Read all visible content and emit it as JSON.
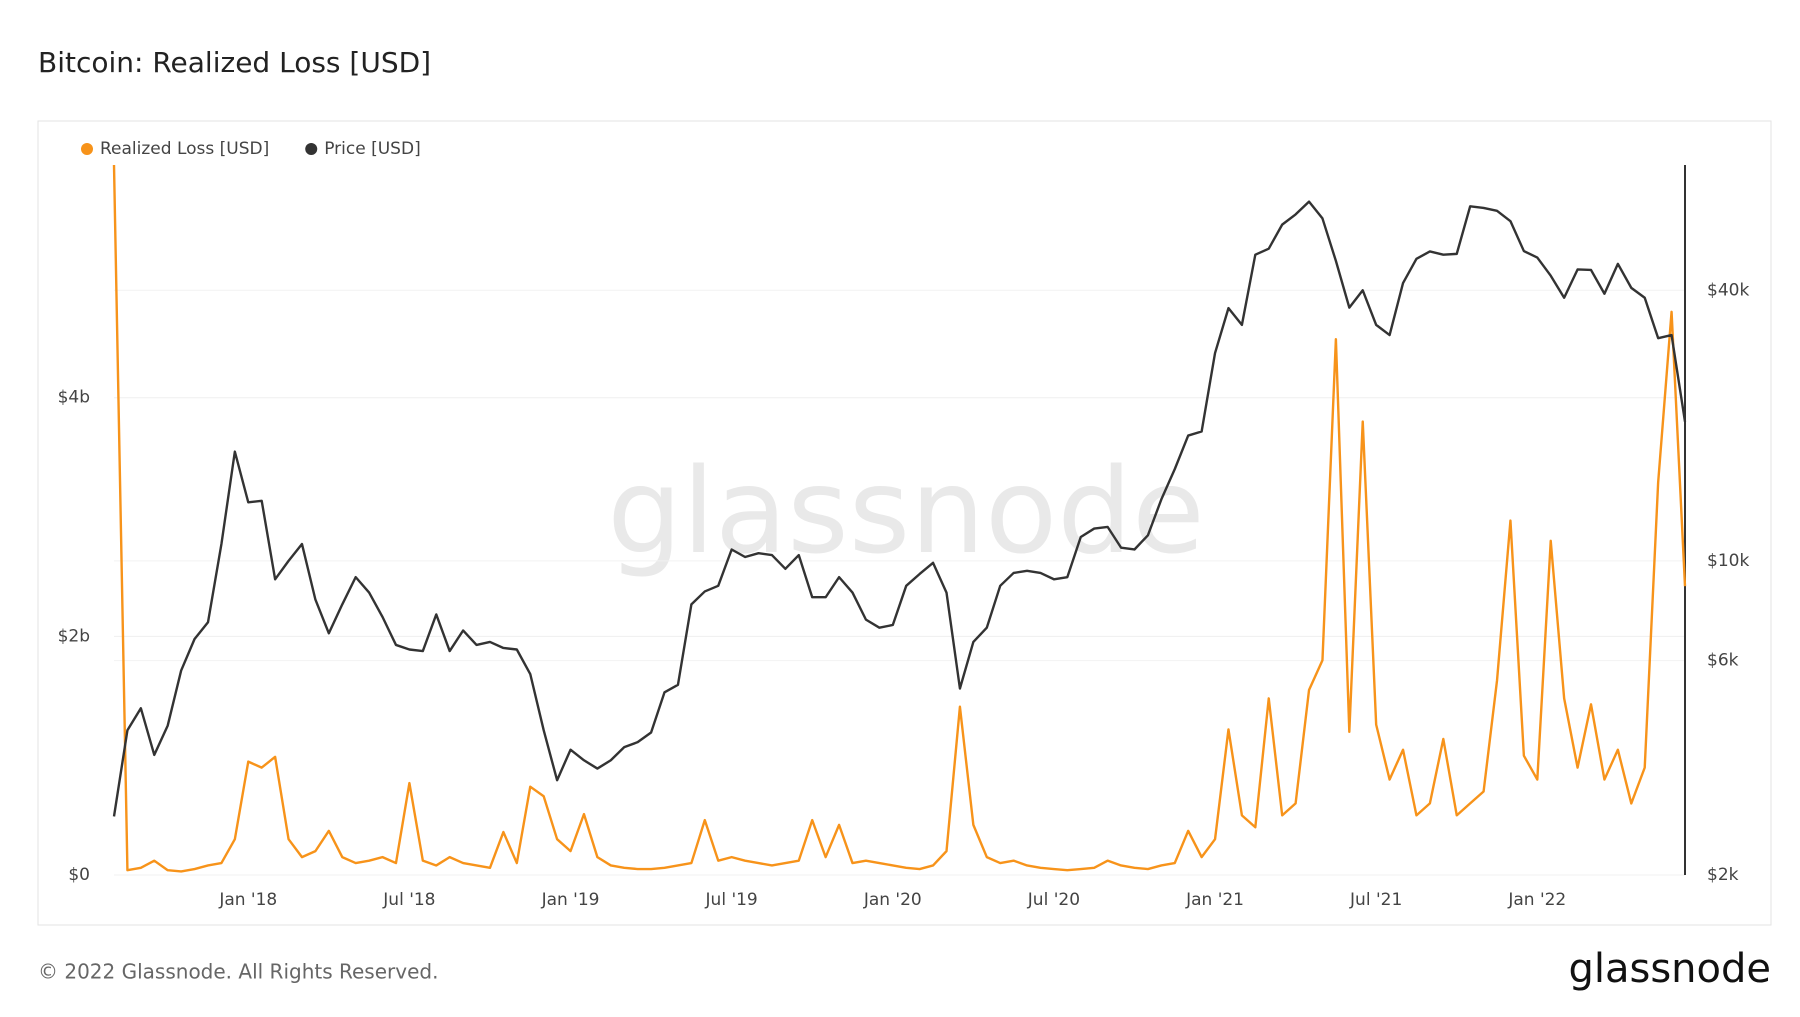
{
  "chart_data": {
    "type": "line",
    "title": "Bitcoin: Realized Loss [USD]",
    "watermark": "glassnode",
    "categories": [
      null,
      null,
      null,
      null,
      null,
      null,
      null,
      null,
      null,
      null,
      "Jan '18",
      null,
      null,
      null,
      null,
      null,
      null,
      null,
      null,
      null,
      null,
      null,
      "Jul '18",
      null,
      null,
      null,
      null,
      null,
      null,
      null,
      null,
      null,
      null,
      null,
      "Jan '19",
      null,
      null,
      null,
      null,
      null,
      null,
      null,
      null,
      null,
      null,
      null,
      "Jul '19",
      null,
      null,
      null,
      null,
      null,
      null,
      null,
      null,
      null,
      null,
      null,
      "Jan '20",
      null,
      null,
      null,
      null,
      null,
      null,
      null,
      null,
      null,
      null,
      null,
      "Jul '20",
      null,
      null,
      null,
      null,
      null,
      null,
      null,
      null,
      null,
      null,
      null,
      "Jan '21",
      null,
      null,
      null,
      null,
      null,
      null,
      null,
      null,
      null,
      null,
      null,
      "Jul '21",
      null,
      null,
      null,
      null,
      null,
      null,
      null,
      null,
      null,
      null,
      null,
      "Jan '22",
      null,
      null,
      null,
      null,
      null,
      null,
      null,
      null,
      null,
      null,
      null
    ],
    "series": [
      {
        "name": "Realized Loss [USD]",
        "color": "#f7931a",
        "axis": "y",
        "values": [
          5950000000.0,
          40000000.0,
          60000000.0,
          120000000.0,
          40000000.0,
          30000000.0,
          50000000.0,
          80000000.0,
          100000000.0,
          300000000.0,
          950000000.0,
          900000000.0,
          990000000.0,
          300000000.0,
          150000000.0,
          200000000.0,
          370000000.0,
          150000000.0,
          100000000.0,
          120000000.0,
          150000000.0,
          100000000.0,
          770000000.0,
          120000000.0,
          80000000.0,
          150000000.0,
          100000000.0,
          80000000.0,
          60000000.0,
          360000000.0,
          100000000.0,
          740000000.0,
          660000000.0,
          300000000.0,
          200000000.0,
          510000000.0,
          150000000.0,
          80000000.0,
          60000000.0,
          50000000.0,
          50000000.0,
          60000000.0,
          80000000.0,
          100000000.0,
          460000000.0,
          120000000.0,
          150000000.0,
          120000000.0,
          100000000.0,
          80000000.0,
          100000000.0,
          120000000.0,
          460000000.0,
          150000000.0,
          420000000.0,
          100000000.0,
          120000000.0,
          100000000.0,
          80000000.0,
          60000000.0,
          50000000.0,
          80000000.0,
          200000000.0,
          1410000000.0,
          420000000.0,
          150000000.0,
          100000000.0,
          120000000.0,
          80000000.0,
          60000000.0,
          50000000.0,
          40000000.0,
          50000000.0,
          60000000.0,
          120000000.0,
          80000000.0,
          60000000.0,
          50000000.0,
          80000000.0,
          100000000.0,
          370000000.0,
          150000000.0,
          300000000.0,
          1220000000.0,
          500000000.0,
          400000000.0,
          1480000000.0,
          500000000.0,
          600000000.0,
          1550000000.0,
          1800000000.0,
          4490000000.0,
          1200000000.0,
          3800000000.0,
          1260000000.0,
          800000000.0,
          1050000000.0,
          500000000.0,
          600000000.0,
          1140000000.0,
          500000000.0,
          600000000.0,
          700000000.0,
          1630000000.0,
          2970000000.0,
          1000000000.0,
          800000000.0,
          2800000000.0,
          1480000000.0,
          900000000.0,
          1430000000.0,
          800000000.0,
          1050000000.0,
          600000000.0,
          900000000.0,
          3290000000.0,
          4720000000.0,
          2420000000.0
        ]
      },
      {
        "name": "Price [USD]",
        "color": "#333333",
        "axis": "y2",
        "values": [
          2700,
          4200,
          4700,
          3700,
          4300,
          5700,
          6700,
          7300,
          10900,
          17500,
          13500,
          13600,
          9100,
          10000,
          10900,
          8200,
          6900,
          8000,
          9200,
          8500,
          7500,
          6500,
          6350,
          6300,
          7600,
          6300,
          7000,
          6500,
          6600,
          6400,
          6350,
          5600,
          4200,
          3250,
          3800,
          3600,
          3450,
          3600,
          3850,
          3950,
          4150,
          5100,
          5300,
          8000,
          8550,
          8800,
          10600,
          10200,
          10400,
          10300,
          9600,
          10300,
          8300,
          8300,
          9200,
          8500,
          7400,
          7100,
          7200,
          8800,
          9350,
          9900,
          8500,
          5200,
          6600,
          7100,
          8800,
          9400,
          9500,
          9400,
          9100,
          9200,
          11300,
          11800,
          11900,
          10700,
          10600,
          11400,
          13700,
          16000,
          19000,
          19400,
          29000,
          36500,
          33500,
          48000,
          49500,
          56000,
          59000,
          63000,
          57800,
          46500,
          36600,
          40000,
          33500,
          31800,
          41500,
          47000,
          48800,
          48000,
          48200,
          61500,
          61000,
          60100,
          57000,
          48900,
          47300,
          43100,
          38500,
          44500,
          44400,
          39300,
          45800,
          40500,
          38500,
          31300,
          31800,
          20400
        ]
      }
    ],
    "ylim": [
      0,
      5950000000.0
    ],
    "yticks": [
      {
        "value": 0,
        "label": "$0"
      },
      {
        "value": 2000000000.0,
        "label": "$2b"
      },
      {
        "value": 4000000000.0,
        "label": "$4b"
      }
    ],
    "y2lim": [
      2000,
      76000
    ],
    "y2scale": "log",
    "y2ticks": [
      {
        "value": 2000,
        "label": "$2k"
      },
      {
        "value": 6000,
        "label": "$6k"
      },
      {
        "value": 10000,
        "label": "$10k"
      },
      {
        "value": 40000,
        "label": "$40k"
      }
    ],
    "grid": true,
    "legend": "top-left"
  },
  "footer": {
    "copyright": "© 2022 Glassnode. All Rights Reserved.",
    "logo": "glassnode"
  }
}
